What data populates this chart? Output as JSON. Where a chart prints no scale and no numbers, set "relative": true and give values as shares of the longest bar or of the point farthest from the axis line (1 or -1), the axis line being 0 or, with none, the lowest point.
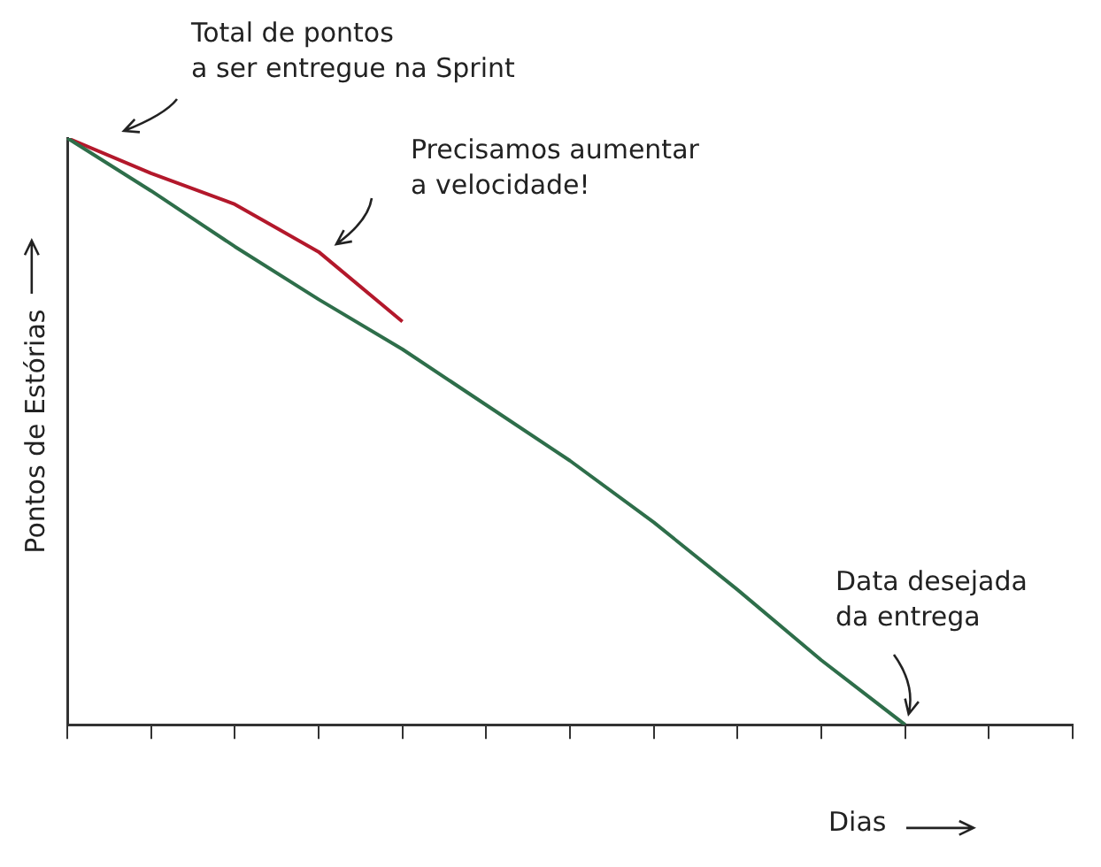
{
  "chart_data": {
    "type": "line",
    "relative": true,
    "xlabel": "Dias",
    "ylabel": "Pontos de Estórias",
    "categories": [
      null,
      null,
      null,
      null,
      null,
      null,
      null,
      null,
      null,
      null,
      null,
      null,
      null
    ],
    "series": [
      {
        "color": "#2e6e4a",
        "values": [
          1,
          0.91,
          0.815,
          0.725,
          0.64,
          0.545,
          0.45,
          0.345,
          0.23,
          0.11,
          0,
          null,
          null
        ]
      },
      {
        "color": "#b3182b",
        "values": [
          1,
          0.94,
          0.887,
          0.806,
          0.687,
          null,
          null,
          null,
          null,
          null,
          null,
          null,
          null
        ]
      }
    ],
    "annotations": [
      "Total de pontos\na ser entregue na Sprint",
      "Precisamos aumentar\na velocidade!",
      "Data desejada\nda entrega"
    ],
    "legend": false,
    "grid": false,
    "marker": "none",
    "line_style": "solid"
  }
}
